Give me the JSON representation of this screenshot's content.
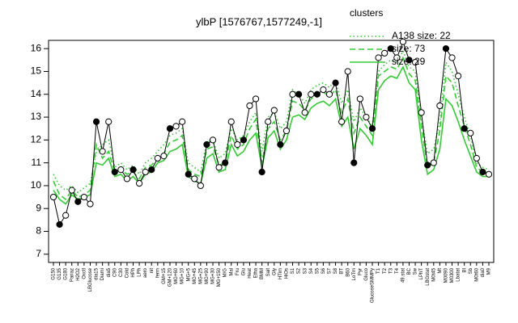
{
  "chart_data": {
    "type": "line",
    "title": "ylbP [1576767,1577249,-1]",
    "legend_title": "clusters",
    "legend_position": "top-right",
    "categories": [
      "G150",
      "G135",
      "G180",
      "Pariaz",
      "H2O2",
      "Oxctl",
      "LBGlucose",
      "dia15",
      "Diami",
      "dia5",
      "C90",
      "C30",
      "Cold",
      "HPh",
      "LPh",
      "aero",
      "nit",
      "ferm",
      "GM+15",
      "GM+120",
      "MG+60",
      "MG+10",
      "MG+5",
      "MG+45",
      "MG+25",
      "MG+90",
      "MG+30",
      "MG+150",
      "M/G",
      "Mal",
      "Fru",
      "Glu",
      "Heat",
      "Etha",
      "BMM",
      "Salt",
      "Gly",
      "HTim",
      "HiOs",
      "S1",
      "S2",
      "S3",
      "S4",
      "S5",
      "S6",
      "S7",
      "S8",
      "BT",
      "B60",
      "LoTm",
      "Pyr",
      "Gluco",
      "GlucoseSMMPy",
      "T1",
      "T2",
      "T3",
      "T4",
      "49.stat",
      "BC",
      "Sw",
      "LPhT",
      "LBGstat",
      "M0t45",
      "Mt",
      "M0090",
      "M0300",
      "Lbatat",
      "BI",
      "Sb",
      "M0t60",
      "dia0",
      "M9"
    ],
    "main": {
      "color": "#000000",
      "values": [
        9.5,
        8.3,
        8.7,
        9.8,
        9.3,
        9.5,
        9.2,
        12.8,
        11.5,
        12.8,
        10.6,
        10.7,
        10.3,
        10.7,
        10.1,
        10.6,
        10.7,
        11.2,
        11.3,
        12.5,
        12.6,
        12.8,
        10.5,
        10.3,
        10.0,
        11.8,
        12.0,
        10.8,
        11.0,
        12.8,
        11.8,
        12.0,
        13.5,
        13.8,
        10.6,
        12.8,
        13.3,
        11.8,
        12.4,
        14.0,
        14.0,
        13.2,
        14.0,
        14.0,
        14.2,
        14.0,
        14.5,
        12.8,
        15.0,
        11.0,
        13.8,
        13.0,
        12.5,
        15.6,
        15.8,
        16.0,
        15.6,
        16.3,
        15.5,
        15.4,
        13.2,
        10.9,
        11.0,
        13.5,
        16.0,
        15.6,
        14.8,
        12.5,
        12.3,
        11.2,
        10.6,
        10.5
      ]
    },
    "series": [
      {
        "name": "A138 size: 22",
        "color": "#33cc33",
        "dash": "dotted",
        "values": [
          10.5,
          10.0,
          9.8,
          10.0,
          9.7,
          9.9,
          10.1,
          11.5,
          11.8,
          12.0,
          10.8,
          11.0,
          10.7,
          10.9,
          10.5,
          11.0,
          11.2,
          11.5,
          11.8,
          12.2,
          12.3,
          12.5,
          11.0,
          10.8,
          10.6,
          11.9,
          12.0,
          11.2,
          11.4,
          12.5,
          12.0,
          12.2,
          12.8,
          13.2,
          11.5,
          13.0,
          13.2,
          12.5,
          12.8,
          14.2,
          14.0,
          13.6,
          14.2,
          14.4,
          14.5,
          14.3,
          14.6,
          13.6,
          14.2,
          12.8,
          13.4,
          13.0,
          12.6,
          15.0,
          15.3,
          15.5,
          15.4,
          15.9,
          15.2,
          15.0,
          13.0,
          11.4,
          11.6,
          12.8,
          15.4,
          15.0,
          14.0,
          13.0,
          12.2,
          11.0,
          10.8,
          10.7
        ]
      },
      {
        "name": "size: 73",
        "color": "#33cc33",
        "dash": "dashed",
        "values": [
          10.2,
          9.6,
          9.4,
          9.8,
          9.5,
          9.6,
          9.8,
          11.8,
          11.2,
          11.5,
          10.6,
          10.7,
          10.5,
          10.6,
          10.3,
          10.8,
          10.9,
          11.2,
          11.4,
          11.9,
          12.0,
          12.2,
          10.7,
          10.5,
          10.4,
          11.6,
          11.7,
          10.9,
          11.0,
          12.2,
          11.6,
          11.8,
          12.5,
          12.9,
          11.0,
          12.5,
          12.8,
          12.0,
          12.4,
          13.7,
          13.6,
          13.3,
          13.8,
          14.0,
          14.1,
          13.9,
          14.2,
          13.2,
          13.8,
          12.3,
          13.0,
          12.6,
          12.2,
          14.8,
          15.0,
          15.2,
          15.1,
          15.6,
          14.9,
          14.6,
          12.6,
          10.8,
          11.0,
          12.4,
          14.8,
          14.5,
          13.5,
          12.6,
          11.8,
          10.8,
          10.6,
          10.5
        ]
      },
      {
        "name": "size: 29",
        "color": "#33cc33",
        "dash": "solid",
        "values": [
          9.8,
          9.4,
          9.2,
          9.6,
          9.4,
          9.5,
          9.6,
          11.0,
          10.9,
          11.2,
          10.4,
          10.5,
          10.2,
          10.4,
          10.1,
          10.5,
          10.6,
          11.0,
          11.1,
          11.5,
          11.6,
          11.8,
          10.4,
          10.2,
          10.1,
          11.2,
          11.4,
          10.6,
          10.7,
          11.8,
          11.3,
          11.5,
          12.0,
          12.3,
          10.8,
          12.1,
          12.4,
          11.6,
          12.0,
          13.0,
          13.1,
          12.9,
          13.4,
          13.6,
          13.7,
          13.5,
          13.8,
          12.6,
          13.0,
          11.6,
          12.5,
          12.2,
          11.8,
          14.2,
          14.6,
          14.8,
          14.7,
          15.2,
          14.5,
          14.2,
          12.0,
          10.5,
          10.7,
          11.6,
          13.8,
          13.5,
          12.8,
          12.0,
          11.3,
          10.6,
          10.4,
          10.4
        ]
      }
    ],
    "ylim": [
      6.64,
      16.36
    ],
    "yticks": [
      7,
      8,
      9,
      10,
      11,
      12,
      13,
      14,
      15,
      16
    ]
  }
}
